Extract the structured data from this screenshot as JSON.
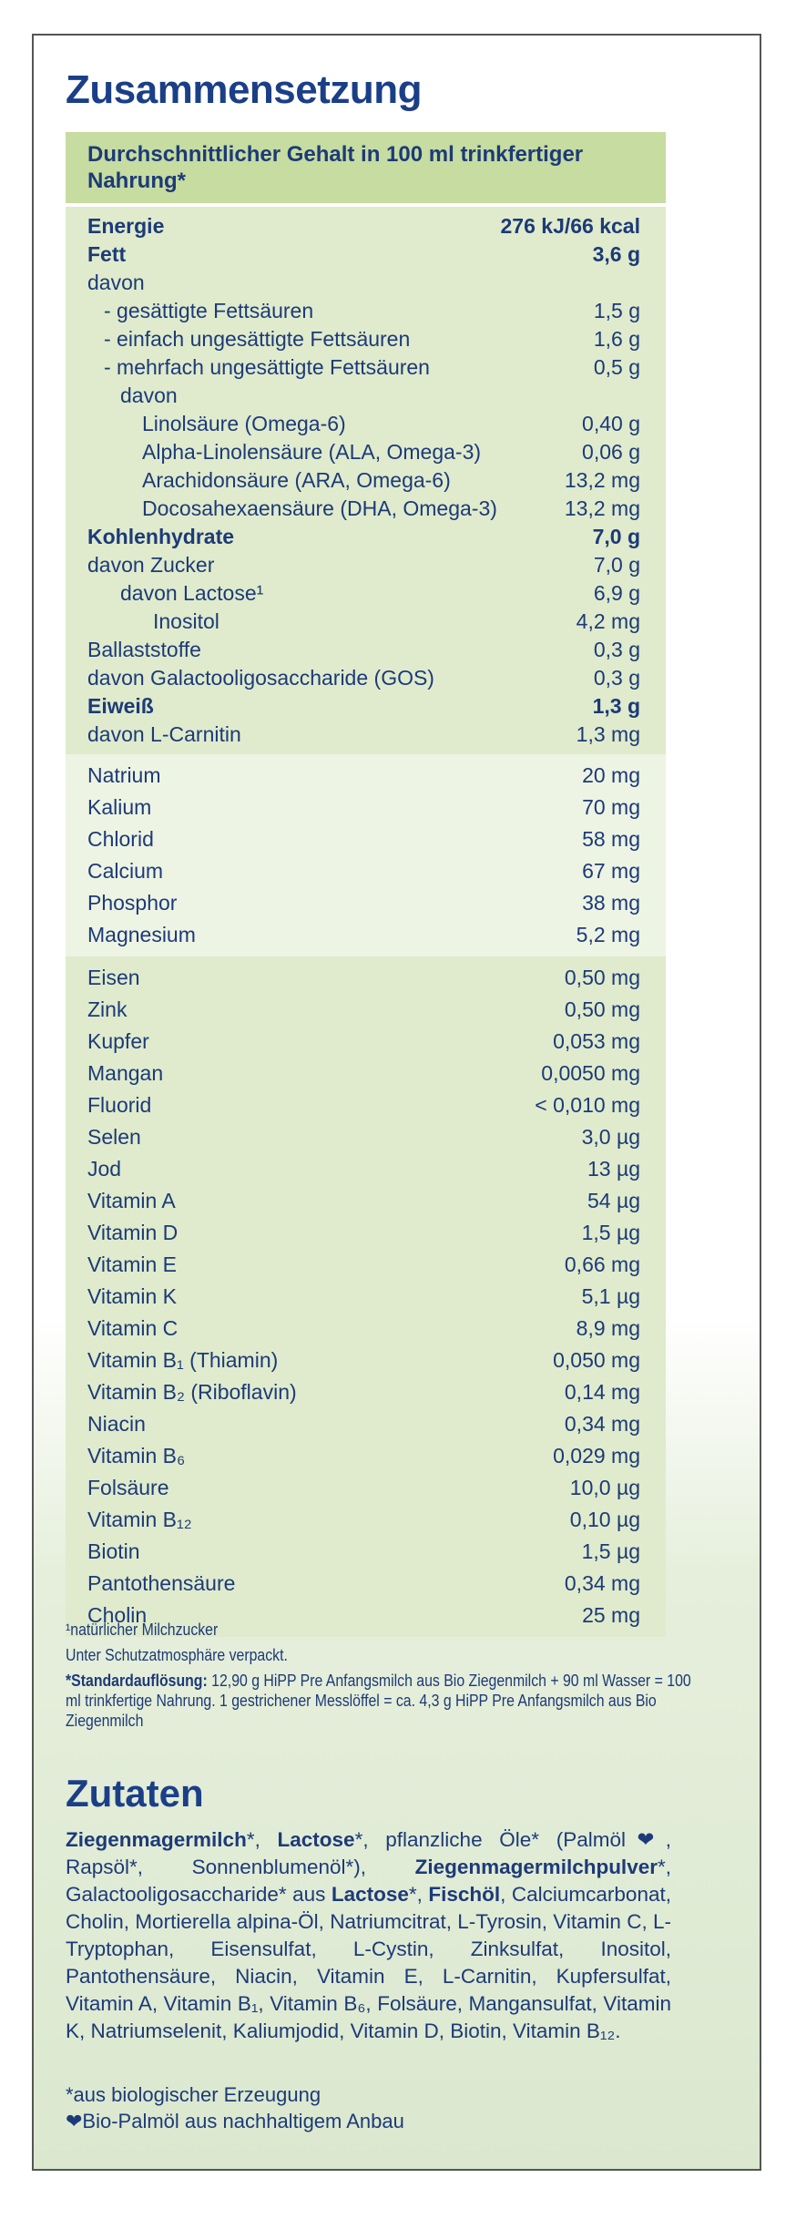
{
  "header": {
    "title": "Zusammensetzung",
    "table_caption": "Durchschnittlicher Gehalt in 100 ml trinkfertiger Nahrung*"
  },
  "table": {
    "groups": [
      {
        "rows": [
          {
            "label": "Energie",
            "value": "276 kJ/66 kcal",
            "bold": true,
            "indent": 0
          },
          {
            "label": "Fett",
            "value": "3,6 g",
            "bold": true,
            "indent": 0
          },
          {
            "label": "davon",
            "value": null,
            "bold": false,
            "indent": 0
          },
          {
            "label": "- gesättigte Fettsäuren",
            "value": "1,5 g",
            "bold": false,
            "indent": 1
          },
          {
            "label": "- einfach ungesättigte Fettsäuren",
            "value": "1,6 g",
            "bold": false,
            "indent": 1
          },
          {
            "label": "- mehrfach ungesättigte Fettsäuren",
            "value": "0,5 g",
            "bold": false,
            "indent": 1
          },
          {
            "label": "davon",
            "value": null,
            "bold": false,
            "indent": 2
          },
          {
            "label": "Linolsäure (Omega-6)",
            "value": "0,40 g",
            "bold": false,
            "indent": 3
          },
          {
            "label": "Alpha-Linolensäure (ALA, Omega-3)",
            "value": "0,06 g",
            "bold": false,
            "indent": 3
          },
          {
            "label": "Arachidonsäure (ARA, Omega-6)",
            "value": "13,2 mg",
            "bold": false,
            "indent": 3
          },
          {
            "label": "Docosahexaensäure (DHA, Omega-3)",
            "value": "13,2 mg",
            "bold": false,
            "indent": 3
          },
          {
            "label": "Kohlenhydrate",
            "value": "7,0 g",
            "bold": true,
            "indent": 0
          },
          {
            "label": "davon Zucker",
            "value": "7,0 g",
            "bold": false,
            "indent": 0
          },
          {
            "label": "davon Lactose¹",
            "value": "6,9 g",
            "bold": false,
            "indent": 2
          },
          {
            "label": "Inositol",
            "value": "4,2 mg",
            "bold": false,
            "indent": 4
          },
          {
            "label": "Ballaststoffe",
            "value": "0,3 g",
            "bold": false,
            "indent": 0
          },
          {
            "label": "davon Galactooligosaccharide (GOS)",
            "value": "0,3 g",
            "bold": false,
            "indent": 0
          },
          {
            "label": "Eiweiß",
            "value": "1,3 g",
            "bold": true,
            "indent": 0
          },
          {
            "label": "davon L-Carnitin",
            "value": "1,3 mg",
            "bold": false,
            "indent": 0
          }
        ]
      },
      {
        "rows": [
          {
            "label": "Natrium",
            "value": "20 mg"
          },
          {
            "label": "Kalium",
            "value": "70 mg"
          },
          {
            "label": "Chlorid",
            "value": "58 mg"
          },
          {
            "label": "Calcium",
            "value": "67 mg"
          },
          {
            "label": "Phosphor",
            "value": "38 mg"
          },
          {
            "label": "Magnesium",
            "value": "5,2 mg"
          }
        ]
      },
      {
        "rows": [
          {
            "label": "Eisen",
            "value": "0,50 mg"
          },
          {
            "label": "Zink",
            "value": "0,50 mg"
          },
          {
            "label": "Kupfer",
            "value": "0,053 mg"
          },
          {
            "label": "Mangan",
            "value": "0,0050 mg"
          },
          {
            "label": "Fluorid",
            "value": "< 0,010 mg"
          },
          {
            "label": "Selen",
            "value": "3,0 µg"
          },
          {
            "label": "Jod",
            "value": "13 µg"
          },
          {
            "label": "Vitamin A",
            "value": "54 µg"
          },
          {
            "label": "Vitamin D",
            "value": "1,5 µg"
          },
          {
            "label": "Vitamin E",
            "value": "0,66 mg"
          },
          {
            "label": "Vitamin K",
            "value": "5,1 µg"
          },
          {
            "label": "Vitamin C",
            "value": "8,9 mg"
          },
          {
            "label": "Vitamin B₁ (Thiamin)",
            "value": "0,050 mg"
          },
          {
            "label": "Vitamin B₂ (Riboflavin)",
            "value": "0,14 mg"
          },
          {
            "label": "Niacin",
            "value": "0,34 mg"
          },
          {
            "label": "Vitamin B₆",
            "value": "0,029 mg"
          },
          {
            "label": "Folsäure",
            "value": "10,0 µg"
          },
          {
            "label": "Vitamin B₁₂",
            "value": "0,10 µg"
          },
          {
            "label": "Biotin",
            "value": "1,5 µg"
          },
          {
            "label": "Pantothensäure",
            "value": "0,34 mg"
          },
          {
            "label": "Cholin",
            "value": "25 mg"
          }
        ]
      }
    ]
  },
  "footnotes": {
    "lactose": "¹natürlicher Milchzucker",
    "packaging": "Unter Schutzatmosphäre verpackt.",
    "standard_bold": "*Standardauflösung:",
    "standard_text": " 12,90 g HiPP Pre Anfangsmilch aus Bio Ziegenmilch + 90 ml Wasser = 100 ml trinkfertige Nahrung. 1 gestrichener Messlöffel = ca. 4,3 g HiPP Pre Anfangsmilch aus Bio Ziegenmilch"
  },
  "ingredients": {
    "title": "Zutaten",
    "segments": [
      {
        "text": "Ziegenmagermilch",
        "bold": true
      },
      {
        "text": "*, ",
        "bold": false
      },
      {
        "text": "Lactose",
        "bold": true
      },
      {
        "text": "*, pflanzliche Öle* (Palmöl❤, Rapsöl*, Sonnenblumenöl*), ",
        "bold": false
      },
      {
        "text": "Ziegenmagermilchpulver",
        "bold": true
      },
      {
        "text": "*, Galactooligosaccharide* aus ",
        "bold": false
      },
      {
        "text": "Lactose",
        "bold": true
      },
      {
        "text": "*, ",
        "bold": false
      },
      {
        "text": "Fischöl",
        "bold": true
      },
      {
        "text": ", Calciumcarbonat, Cholin, Mortierella alpina-Öl, Natriumcitrat, L-Tyrosin, Vitamin C, L-Tryptophan, Eisensulfat, L-Cystin, Zinksulfat, Inositol, Pantothensäure, Niacin, Vitamin E, L-Carnitin, Kupfersulfat, Vitamin A, Vitamin B₁, Vitamin B₆, Folsäure, Mangansulfat, Vitamin K, Natriumselenit, Kaliumjodid, Vitamin D, Biotin, Vitamin B₁₂.",
        "bold": false
      }
    ],
    "note_organic": "*aus biologischer Erzeugung",
    "note_palm": "❤Bio-Palmöl aus nachhaltigem Anbau"
  }
}
